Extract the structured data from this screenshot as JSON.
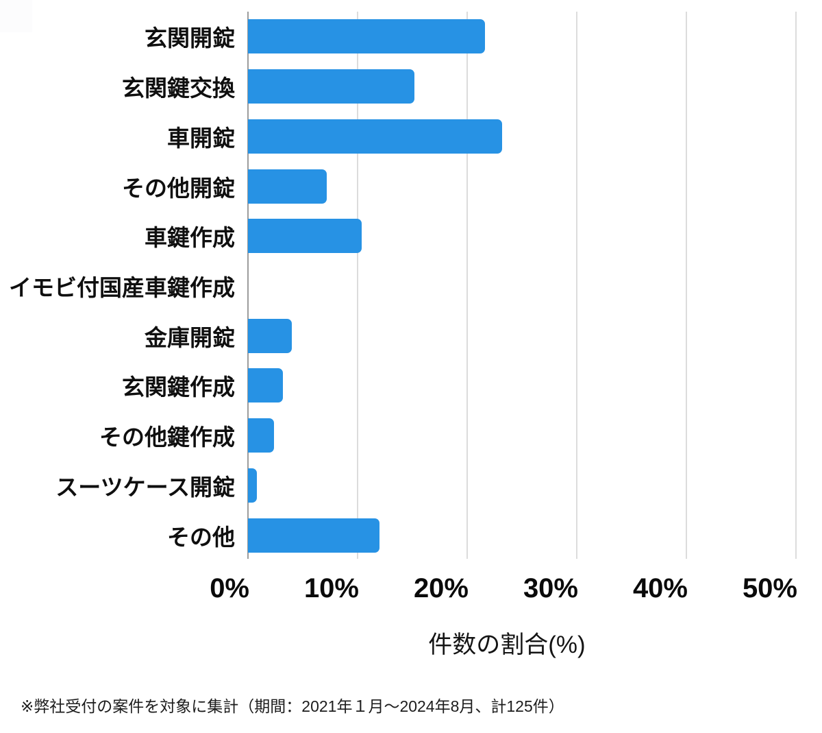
{
  "chart_data": {
    "type": "bar",
    "orientation": "horizontal",
    "categories": [
      "玄関開錠",
      "玄関鍵交換",
      "車開錠",
      "その他開錠",
      "車鍵作成",
      "イモビ付国産車鍵作成",
      "金庫開錠",
      "玄関鍵作成",
      "その他鍵作成",
      "スーツケース開錠",
      "その他"
    ],
    "values": [
      21.6,
      15.2,
      23.2,
      7.2,
      10.4,
      0,
      4.0,
      3.2,
      2.4,
      0.8,
      12.0
    ],
    "xlabel": "件数の割合(%)",
    "xlim": [
      0,
      50
    ],
    "xticks": [
      0,
      10,
      20,
      30,
      40,
      50
    ],
    "xtick_labels": [
      "0%",
      "10%",
      "20%",
      "30%",
      "40%",
      "50%"
    ],
    "grid": true,
    "legend": "none",
    "bar_color": "#2792E4"
  },
  "footnote": {
    "text": "※弊社受付の案件を対象に集計（期間：2021年１月～2024年8月、計125件）"
  },
  "colors": {
    "bar": "#2792E4",
    "gridline": "#DCDCDC",
    "axis_line": "#9C9C9C",
    "text": "#0F0F0F",
    "background": "#FFFFFF"
  }
}
